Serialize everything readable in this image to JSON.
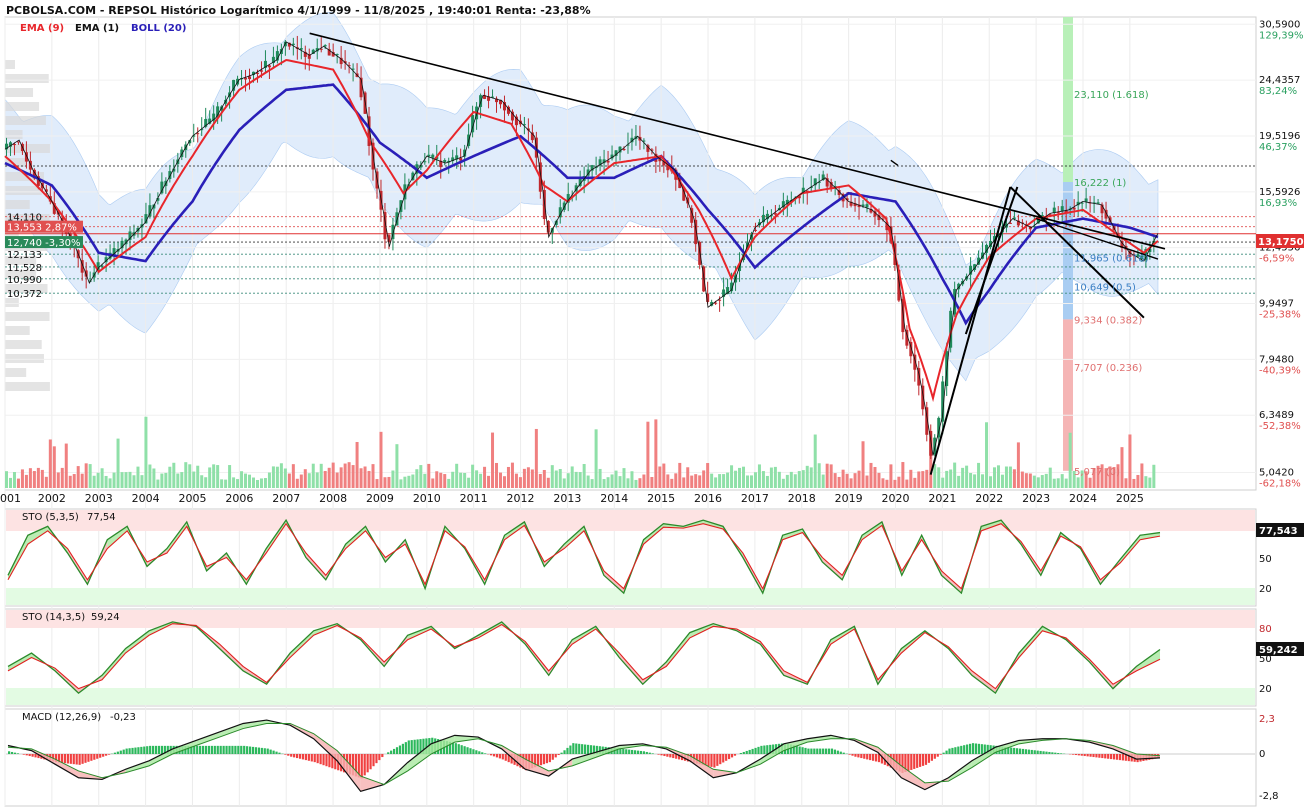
{
  "header": {
    "title": "PCBOLSA.COM - REPSOL Histórico Logarítmico 4/1/1999 - 11/8/2025 , 19:40:01 Renta: -23,88%"
  },
  "main_legend": [
    {
      "label": "EMA (9)",
      "color": "#e8262b"
    },
    {
      "label": "EMA (1)",
      "color": "#111111"
    },
    {
      "label": "BOLL (20)",
      "color": "#2a1fb8"
    }
  ],
  "colors": {
    "up_candle": "#1f8a5b",
    "down_candle": "#c0282d",
    "ema9": "#e8262b",
    "boll_mid": "#2a1fb8",
    "boll_fill": "#dbe9fb",
    "vol_up": "#8fe0a8",
    "vol_down": "#f08080",
    "fib_green": "#b8f0b8",
    "fib_blue": "#a9cdf2",
    "fib_red": "#f5b5b5",
    "overbought": "#fde3e3",
    "oversold": "#e3fbe3",
    "macd_pos": "#2cb85c",
    "macd_neg": "#f04040"
  },
  "chart_data": [
    {
      "type": "line",
      "panel": "price",
      "scale": "log",
      "title": "REPSOL",
      "x_tick_labels": [
        "001",
        "2002",
        "2003",
        "2004",
        "2005",
        "2006",
        "2007",
        "2008",
        "2009",
        "2010",
        "2011",
        "2012",
        "2013",
        "2014",
        "2015",
        "2016",
        "2017",
        "2018",
        "2019",
        "2020",
        "2021",
        "2022",
        "2023",
        "2024",
        "2025"
      ],
      "xlim": [
        2001.0,
        2026.5
      ],
      "ylim": [
        4.7,
        31.5
      ],
      "y_tick_labels": [
        {
          "price": "30,5900",
          "pct": "129,39%"
        },
        {
          "price": "24,4357",
          "pct": "83,24%"
        },
        {
          "price": "19,5196",
          "pct": "46,37%"
        },
        {
          "price": "15,5926",
          "pct": "16,93%"
        },
        {
          "price": "12,4556",
          "pct": "-6,59%"
        },
        {
          "price": "9,9497",
          "pct": "-25,38%"
        },
        {
          "price": "7,9480",
          "pct": "-40,39%"
        },
        {
          "price": "6,3489",
          "pct": "-52,38%"
        },
        {
          "price": "5,0420",
          "pct": "-62,18%"
        }
      ],
      "y_ticks": [
        30.59,
        24.4357,
        19.5196,
        15.5926,
        12.4556,
        9.9497,
        7.948,
        6.3489,
        5.042
      ],
      "current_price_label": "13,1750",
      "left_levels": [
        {
          "label": "14,110",
          "value": 14.11
        },
        {
          "label": "13,553",
          "pct": "2,87%",
          "value": 13.553
        },
        {
          "label": "12,740",
          "pct": "-3,30%",
          "value": 12.74
        },
        {
          "label": "12,133",
          "value": 12.133
        },
        {
          "label": "11,528",
          "value": 11.528
        },
        {
          "label": "10,990",
          "value": 10.99
        },
        {
          "label": "10,372",
          "value": 10.372
        }
      ],
      "fib_levels": [
        {
          "label": "23,110 (1.618)",
          "value": 23.11
        },
        {
          "label": "16,222 (1)",
          "value": 16.222
        },
        {
          "label": "11,965 (0.618)",
          "value": 11.965
        },
        {
          "label": "10,649 (0.5)",
          "value": 10.649
        },
        {
          "label": "9,334 (0.382)",
          "value": 9.334
        },
        {
          "label": "7,707 (0.236)",
          "value": 7.707
        },
        {
          "label": "5,077 (0)",
          "value": 5.077
        }
      ],
      "series": [
        {
          "name": "EMA (1)",
          "x": [
            2001.0,
            2001.3,
            2001.6,
            2002.0,
            2002.5,
            2002.8,
            2003.0,
            2003.5,
            2004.0,
            2004.5,
            2005.0,
            2005.5,
            2006.0,
            2006.3,
            2006.8,
            2007.0,
            2007.5,
            2007.8,
            2008.2,
            2008.6,
            2008.9,
            2009.2,
            2009.6,
            2010.0,
            2010.4,
            2010.8,
            2011.2,
            2011.6,
            2011.9,
            2012.3,
            2012.6,
            2013.0,
            2013.5,
            2014.0,
            2014.5,
            2014.9,
            2015.3,
            2015.7,
            2016.0,
            2016.5,
            2017.0,
            2017.5,
            2018.0,
            2018.5,
            2019.0,
            2019.5,
            2019.9,
            2020.2,
            2020.5,
            2020.8,
            2021.0,
            2021.3,
            2021.7,
            2022.0,
            2022.5,
            2022.9,
            2023.3,
            2023.7,
            2024.0,
            2024.4,
            2024.8,
            2025.0,
            2025.3,
            2025.6
          ],
          "values": [
            18.5,
            19.2,
            17.0,
            15.0,
            12.5,
            10.8,
            11.5,
            12.5,
            13.8,
            16.5,
            19.5,
            21.0,
            24.5,
            25.0,
            26.5,
            28.5,
            27.0,
            28.0,
            26.5,
            24.5,
            17.0,
            12.5,
            16.0,
            18.0,
            17.5,
            18.0,
            23.0,
            22.5,
            21.0,
            19.5,
            13.0,
            15.0,
            17.0,
            18.0,
            19.5,
            18.0,
            17.0,
            14.0,
            9.8,
            10.5,
            13.5,
            14.5,
            15.5,
            16.5,
            15.0,
            14.5,
            13.5,
            9.0,
            7.5,
            5.4,
            6.3,
            10.5,
            11.5,
            12.5,
            14.0,
            13.5,
            14.3,
            14.5,
            15.0,
            14.8,
            12.8,
            12.2,
            11.8,
            13.2
          ]
        },
        {
          "name": "EMA (9)",
          "x": [
            2001.0,
            2002.0,
            2003.0,
            2004.0,
            2005.0,
            2006.0,
            2007.0,
            2008.0,
            2008.8,
            2009.5,
            2010.0,
            2011.0,
            2011.8,
            2012.5,
            2013.0,
            2014.0,
            2015.0,
            2015.8,
            2016.5,
            2017.0,
            2018.0,
            2019.0,
            2019.8,
            2020.3,
            2020.8,
            2021.3,
            2022.0,
            2023.0,
            2024.0,
            2024.8,
            2025.3,
            2025.6
          ],
          "values": [
            18.0,
            15.0,
            11.3,
            13.0,
            18.0,
            23.5,
            26.5,
            25.5,
            19.0,
            15.5,
            17.0,
            21.5,
            20.5,
            16.0,
            15.0,
            17.5,
            18.0,
            14.5,
            11.0,
            13.0,
            15.5,
            16.0,
            14.0,
            9.0,
            6.8,
            9.5,
            12.0,
            14.0,
            14.5,
            13.0,
            12.2,
            12.8
          ]
        },
        {
          "name": "BOLL (20)",
          "x": [
            2001.0,
            2002.0,
            2003.0,
            2004.0,
            2005.0,
            2006.0,
            2007.0,
            2008.0,
            2009.0,
            2010.0,
            2011.0,
            2012.0,
            2013.0,
            2014.0,
            2015.0,
            2016.0,
            2017.0,
            2018.0,
            2019.0,
            2020.0,
            2021.0,
            2021.5,
            2022.0,
            2023.0,
            2024.0,
            2025.0,
            2025.6
          ],
          "values": [
            17.5,
            16.0,
            12.2,
            11.8,
            15.0,
            20.0,
            23.5,
            24.0,
            19.0,
            16.5,
            18.0,
            19.5,
            16.5,
            16.5,
            18.0,
            14.5,
            11.5,
            13.5,
            15.5,
            15.0,
            11.0,
            9.2,
            10.5,
            13.5,
            14.0,
            13.5,
            13.0
          ]
        }
      ]
    },
    {
      "type": "line",
      "panel": "sto_fast",
      "title": "STO (5,3,5)",
      "current_value": "77,54",
      "value_box": "77,543",
      "y_tick_labels": [
        "50",
        "20"
      ],
      "ylim": [
        0,
        100
      ],
      "series": [
        {
          "name": "%K",
          "values": [
            30,
            75,
            85,
            55,
            20,
            70,
            85,
            40,
            60,
            90,
            35,
            55,
            20,
            60,
            92,
            50,
            25,
            65,
            85,
            45,
            70,
            15,
            85,
            60,
            20,
            75,
            90,
            40,
            65,
            85,
            30,
            10,
            70,
            88,
            85,
            92,
            85,
            50,
            10,
            75,
            82,
            45,
            25,
            75,
            90,
            30,
            75,
            30,
            10,
            85,
            92,
            65,
            30,
            78,
            60,
            20,
            48,
            75,
            78
          ]
        },
        {
          "name": "%D",
          "values": [
            25,
            65,
            80,
            60,
            25,
            60,
            80,
            45,
            55,
            85,
            40,
            50,
            25,
            55,
            88,
            55,
            30,
            60,
            80,
            50,
            65,
            20,
            80,
            62,
            25,
            70,
            86,
            45,
            60,
            80,
            35,
            15,
            65,
            84,
            83,
            88,
            82,
            55,
            15,
            70,
            78,
            50,
            30,
            70,
            86,
            35,
            70,
            35,
            15,
            80,
            88,
            68,
            35,
            74,
            62,
            25,
            44,
            70,
            74
          ]
        }
      ]
    },
    {
      "type": "line",
      "panel": "sto_slow",
      "title": "STO (14,3,5)",
      "current_value": "59,24",
      "value_box": "59,242",
      "y_tick_labels": [
        "80",
        "50",
        "20"
      ],
      "ylim": [
        0,
        100
      ],
      "series": [
        {
          "name": "%K",
          "values": [
            40,
            55,
            35,
            10,
            30,
            60,
            80,
            90,
            85,
            60,
            35,
            20,
            55,
            80,
            88,
            70,
            40,
            75,
            85,
            60,
            75,
            90,
            65,
            30,
            70,
            85,
            50,
            20,
            45,
            78,
            88,
            80,
            65,
            30,
            20,
            70,
            85,
            20,
            60,
            80,
            60,
            30,
            10,
            55,
            85,
            70,
            45,
            15,
            40,
            59
          ]
        },
        {
          "name": "%D",
          "values": [
            35,
            50,
            38,
            15,
            25,
            55,
            75,
            88,
            86,
            65,
            40,
            22,
            50,
            75,
            86,
            72,
            45,
            70,
            82,
            62,
            72,
            87,
            68,
            35,
            65,
            82,
            55,
            25,
            40,
            72,
            85,
            82,
            68,
            35,
            22,
            65,
            82,
            25,
            55,
            78,
            62,
            35,
            15,
            50,
            80,
            72,
            48,
            20,
            35,
            48
          ]
        }
      ]
    },
    {
      "type": "area",
      "panel": "macd",
      "title": "MACD (12,26,9)",
      "current_value": "-0,23",
      "y_tick_labels": [
        "2,3",
        "0",
        "-2,8"
      ],
      "ylim": [
        -2.8,
        2.3
      ],
      "series": [
        {
          "name": "MACD",
          "values": [
            0.5,
            0.2,
            -0.6,
            -1.4,
            -1.5,
            -0.9,
            -0.4,
            0.3,
            0.8,
            1.3,
            1.8,
            2.0,
            1.7,
            0.9,
            -0.4,
            -2.2,
            -1.8,
            -0.5,
            0.6,
            1.1,
            1.0,
            0.3,
            -0.9,
            -1.3,
            -0.3,
            0.1,
            0.5,
            0.6,
            0.3,
            -0.4,
            -1.4,
            -1.1,
            -0.3,
            0.6,
            0.9,
            1.1,
            0.8,
            0.1,
            -1.4,
            -2.1,
            -1.4,
            -0.4,
            0.4,
            0.8,
            0.9,
            0.9,
            0.7,
            0.3,
            -0.3,
            -0.23
          ]
        },
        {
          "name": "Signal",
          "values": [
            0.4,
            0.3,
            -0.3,
            -1.0,
            -1.4,
            -1.1,
            -0.7,
            0.0,
            0.5,
            1.0,
            1.5,
            1.8,
            1.8,
            1.2,
            0.2,
            -1.3,
            -1.8,
            -1.0,
            0.0,
            0.7,
            0.9,
            0.5,
            -0.3,
            -1.0,
            -0.7,
            -0.2,
            0.3,
            0.5,
            0.4,
            -0.1,
            -0.9,
            -1.1,
            -0.6,
            0.2,
            0.7,
            0.9,
            0.9,
            0.4,
            -0.7,
            -1.7,
            -1.6,
            -0.8,
            0.1,
            0.6,
            0.8,
            0.9,
            0.8,
            0.5,
            0.0,
            -0.1
          ]
        }
      ]
    }
  ]
}
